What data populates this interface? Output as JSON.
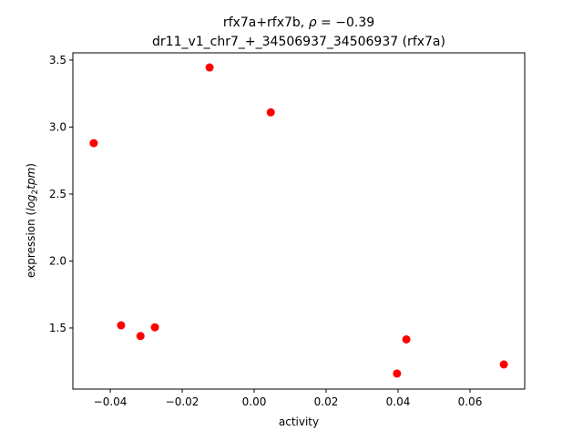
{
  "chart_data": {
    "type": "scatter",
    "title_line1_prefix": "rfx7a+rfx7b, ",
    "title_rho_symbol": "ρ",
    "title_rho_value": " = −0.39",
    "title_line2": "dr11_v1_chr7_+_34506937_34506937 (rfx7a)",
    "xlabel": "activity",
    "ylabel_prefix": "expression (",
    "ylabel_math": "log",
    "ylabel_sub": "2",
    "ylabel_math2": "tpm",
    "ylabel_suffix": ")",
    "xlim": [
      -0.0504,
      0.0752
    ],
    "ylim": [
      1.044,
      3.554
    ],
    "xticks": [
      -0.04,
      -0.02,
      0.0,
      0.02,
      0.04,
      0.06
    ],
    "xtick_labels": [
      "−0.04",
      "−0.02",
      "0.00",
      "0.02",
      "0.04",
      "0.06"
    ],
    "yticks": [
      1.5,
      2.0,
      2.5,
      3.0,
      3.5
    ],
    "ytick_labels": [
      "1.5",
      "2.0",
      "2.5",
      "3.0",
      "3.5"
    ],
    "grid": false,
    "marker_color": "#ff0000",
    "points": [
      {
        "x": -0.0446,
        "y": 2.88
      },
      {
        "x": -0.0124,
        "y": 3.445
      },
      {
        "x": 0.0046,
        "y": 3.11
      },
      {
        "x": -0.037,
        "y": 1.52
      },
      {
        "x": -0.0316,
        "y": 1.44
      },
      {
        "x": -0.0276,
        "y": 1.505
      },
      {
        "x": 0.0423,
        "y": 1.415
      },
      {
        "x": 0.0397,
        "y": 1.16
      },
      {
        "x": 0.0694,
        "y": 1.228
      }
    ]
  }
}
